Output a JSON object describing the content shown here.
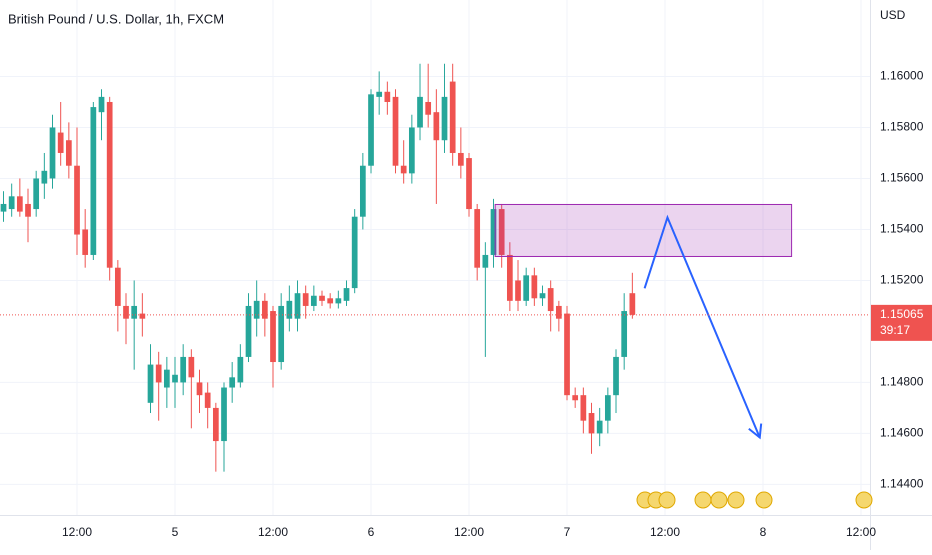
{
  "chart_data": {
    "type": "candlestick",
    "title": "British Pound / U.S. Dollar, 1h, FXCM",
    "currency": "USD",
    "up_color": "#26a69a",
    "down_color": "#ef5350",
    "grid": true,
    "xlim": [
      -9.43,
      97.1
    ],
    "ylim": [
      1.1428,
      1.163
    ],
    "xticks": [
      {
        "value": 0,
        "label": "12:00"
      },
      {
        "value": 12,
        "label": "5"
      },
      {
        "value": 24,
        "label": "12:00"
      },
      {
        "value": 36,
        "label": "6"
      },
      {
        "value": 48,
        "label": "12:00"
      },
      {
        "value": 60,
        "label": "7"
      },
      {
        "value": 72,
        "label": "12:00"
      },
      {
        "value": 84,
        "label": "8"
      },
      {
        "value": 96,
        "label": "12:00"
      }
    ],
    "yticks": [
      {
        "value": 1.144,
        "label": "1.14400"
      },
      {
        "value": 1.146,
        "label": "1.14600"
      },
      {
        "value": 1.148,
        "label": "1.14800"
      },
      {
        "value": 1.152,
        "label": "1.15200"
      },
      {
        "value": 1.154,
        "label": "1.15400"
      },
      {
        "value": 1.156,
        "label": "1.15600"
      },
      {
        "value": 1.158,
        "label": "1.15800"
      },
      {
        "value": 1.16,
        "label": "1.16000"
      }
    ],
    "x": [
      -9,
      -8,
      -7,
      -6,
      -5,
      -4,
      -3,
      -2,
      -1,
      0,
      1,
      2,
      3,
      4,
      5,
      6,
      7,
      8,
      9,
      10,
      11,
      12,
      13,
      14,
      15,
      16,
      17,
      18,
      19,
      20,
      21,
      22,
      23,
      24,
      25,
      26,
      27,
      28,
      29,
      30,
      31,
      32,
      33,
      34,
      35,
      36,
      37,
      38,
      39,
      40,
      41,
      42,
      43,
      44,
      45,
      46,
      47,
      48,
      49,
      50,
      51,
      52,
      53,
      54,
      55,
      56,
      57,
      58,
      59,
      60,
      61,
      62,
      63,
      64,
      65,
      66,
      67,
      68
    ],
    "open": [
      1.1547,
      1.1548,
      1.1553,
      1.155,
      1.1548,
      1.1558,
      1.156,
      1.1578,
      1.1575,
      1.1565,
      1.154,
      1.153,
      1.1586,
      1.159,
      1.1525,
      1.151,
      1.1505,
      1.1507,
      1.1472,
      1.1487,
      1.1478,
      1.148,
      1.148,
      1.149,
      1.148,
      1.1476,
      1.147,
      1.1457,
      1.1478,
      1.148,
      1.149,
      1.1505,
      1.1512,
      1.1508,
      1.1488,
      1.1505,
      1.1505,
      1.1515,
      1.151,
      1.1514,
      1.1513,
      1.1511,
      1.1512,
      1.1517,
      1.1545,
      1.1565,
      1.1592,
      1.1594,
      1.1592,
      1.1565,
      1.1562,
      1.158,
      1.159,
      1.1586,
      1.1575,
      1.1598,
      1.157,
      1.1568,
      1.1548,
      1.1525,
      1.153,
      1.1548,
      1.153,
      1.152,
      1.1512,
      1.1522,
      1.1513,
      1.1517,
      1.151,
      1.1507,
      1.1475,
      1.1475,
      1.1468,
      1.146,
      1.1465,
      1.1475,
      1.149,
      1.1515
    ],
    "high": [
      1.1555,
      1.1558,
      1.156,
      1.1556,
      1.1563,
      1.157,
      1.1585,
      1.159,
      1.1582,
      1.158,
      1.1548,
      1.159,
      1.1595,
      1.1592,
      1.1528,
      1.1515,
      1.152,
      1.1515,
      1.1495,
      1.1492,
      1.149,
      1.149,
      1.1495,
      1.1493,
      1.1485,
      1.148,
      1.1472,
      1.148,
      1.1488,
      1.1495,
      1.1515,
      1.152,
      1.1515,
      1.151,
      1.1515,
      1.1518,
      1.152,
      1.1518,
      1.1518,
      1.1516,
      1.1515,
      1.1516,
      1.152,
      1.1548,
      1.157,
      1.1595,
      1.1602,
      1.1598,
      1.1595,
      1.1575,
      1.1585,
      1.1605,
      1.1605,
      1.1595,
      1.1605,
      1.1605,
      1.158,
      1.157,
      1.155,
      1.1535,
      1.1552,
      1.155,
      1.1535,
      1.1528,
      1.1525,
      1.1525,
      1.1518,
      1.152,
      1.1512,
      1.151,
      1.1478,
      1.1478,
      1.1472,
      1.147,
      1.1478,
      1.1493,
      1.1515,
      1.1523
    ],
    "low": [
      1.1543,
      1.1545,
      1.1545,
      1.1535,
      1.1545,
      1.1552,
      1.1556,
      1.1565,
      1.156,
      1.153,
      1.1525,
      1.1528,
      1.1575,
      1.152,
      1.15,
      1.1495,
      1.1485,
      1.1498,
      1.1468,
      1.1465,
      1.147,
      1.147,
      1.1475,
      1.1462,
      1.1468,
      1.1462,
      1.1445,
      1.1445,
      1.1472,
      1.1478,
      1.1488,
      1.1498,
      1.1498,
      1.1478,
      1.1485,
      1.15,
      1.15,
      1.1505,
      1.1508,
      1.151,
      1.1509,
      1.1509,
      1.151,
      1.1515,
      1.154,
      1.1562,
      1.1585,
      1.1585,
      1.1562,
      1.1558,
      1.1558,
      1.1575,
      1.158,
      1.155,
      1.157,
      1.1565,
      1.156,
      1.1545,
      1.152,
      1.149,
      1.1525,
      1.1525,
      1.1508,
      1.1508,
      1.151,
      1.151,
      1.151,
      1.15,
      1.15,
      1.1473,
      1.147,
      1.146,
      1.1452,
      1.1455,
      1.146,
      1.1468,
      1.1485,
      1.1505
    ],
    "close": [
      1.155,
      1.1553,
      1.1547,
      1.1545,
      1.156,
      1.1563,
      1.158,
      1.157,
      1.1565,
      1.1538,
      1.153,
      1.1588,
      1.1592,
      1.1525,
      1.151,
      1.1505,
      1.151,
      1.1505,
      1.1487,
      1.148,
      1.1485,
      1.1483,
      1.149,
      1.1482,
      1.1475,
      1.147,
      1.1457,
      1.1478,
      1.1482,
      1.149,
      1.151,
      1.1512,
      1.1505,
      1.1488,
      1.151,
      1.1512,
      1.1515,
      1.151,
      1.1514,
      1.1512,
      1.1511,
      1.1513,
      1.1517,
      1.1545,
      1.1565,
      1.1593,
      1.1594,
      1.159,
      1.1565,
      1.1562,
      1.158,
      1.1592,
      1.1585,
      1.1575,
      1.1592,
      1.157,
      1.1565,
      1.1548,
      1.1525,
      1.153,
      1.1548,
      1.153,
      1.1512,
      1.1512,
      1.1522,
      1.1513,
      1.1515,
      1.1508,
      1.1505,
      1.1475,
      1.1473,
      1.1465,
      1.146,
      1.1465,
      1.1475,
      1.149,
      1.1508,
      1.15065
    ],
    "last_price": 1.15065,
    "countdown": "39:17",
    "zone": {
      "x": [
        51.2,
        87.5
      ],
      "y": [
        1.15294,
        1.15498
      ],
      "color": "#9c27b0"
    },
    "arrow": {
      "x": [
        69.5,
        72.3,
        83.6
      ],
      "y": [
        1.15169,
        1.15447,
        1.14584
      ],
      "color": "#2962ff"
    }
  }
}
